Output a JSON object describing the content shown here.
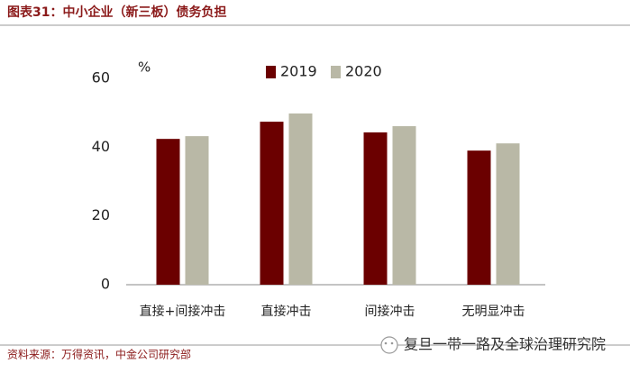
{
  "chart_data": {
    "type": "bar",
    "title": "图表31：中小企业（新三板）债务负担",
    "y_label": "%",
    "source": "资料来源：万得资讯，中金公司研究部",
    "watermark": "复旦一带一路及全球治理研究院",
    "categories": [
      "直接+间接冲击",
      "直接冲击",
      "间接冲击",
      "无明显冲击"
    ],
    "series": [
      {
        "name": "2019",
        "color": "#6b0000",
        "values": [
          42.4,
          47.4,
          44.3,
          39.0
        ]
      },
      {
        "name": "2020",
        "color": "#b9b8a6",
        "values": [
          43.2,
          49.8,
          46.1,
          41.1
        ]
      }
    ],
    "ylim": [
      0,
      60
    ],
    "yticks": [
      0,
      20,
      40,
      60
    ],
    "grid": false
  }
}
